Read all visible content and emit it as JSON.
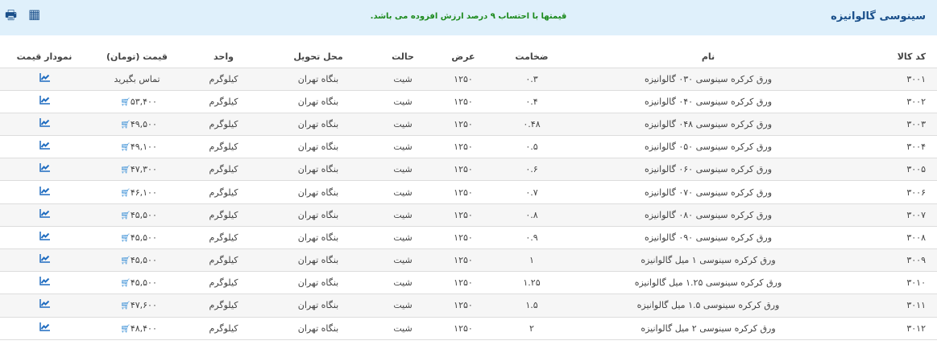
{
  "header": {
    "title": "سینوسی گالوانیزه",
    "notice": "قیمتها با احتساب ۹ درصد ارزش افزوده می باشد.",
    "icons": [
      "print-icon",
      "calculator-icon"
    ]
  },
  "columns": [
    "کد کالا",
    "نام",
    "ضخامت",
    "عرض",
    "حالت",
    "محل تحویل",
    "واحد",
    "قیمت (تومان)",
    "نمودار قیمت"
  ],
  "rows": [
    {
      "code": "۳۰۰۱",
      "name": "ورق کرکره سینوسی ۰۳۰ گالوانیزه",
      "thickness": "۰.۳",
      "width": "۱۲۵۰",
      "state": "شیت",
      "delivery": "بنگاه تهران",
      "unit": "کیلوگرم",
      "price": "تماس بگیرید",
      "cart": false
    },
    {
      "code": "۳۰۰۲",
      "name": "ورق کرکره سینوسی ۰۴۰ گالوانیزه",
      "thickness": "۰.۴",
      "width": "۱۲۵۰",
      "state": "شیت",
      "delivery": "بنگاه تهران",
      "unit": "کیلوگرم",
      "price": "۵۳,۴۰۰",
      "cart": true
    },
    {
      "code": "۳۰۰۳",
      "name": "ورق کرکره سینوسی ۰۴۸ گالوانیزه",
      "thickness": "۰.۴۸",
      "width": "۱۲۵۰",
      "state": "شیت",
      "delivery": "بنگاه تهران",
      "unit": "کیلوگرم",
      "price": "۴۹,۵۰۰",
      "cart": true
    },
    {
      "code": "۳۰۰۴",
      "name": "ورق کرکره سینوسی ۰۵۰ گالوانیزه",
      "thickness": "۰.۵",
      "width": "۱۲۵۰",
      "state": "شیت",
      "delivery": "بنگاه تهران",
      "unit": "کیلوگرم",
      "price": "۴۹,۱۰۰",
      "cart": true
    },
    {
      "code": "۳۰۰۵",
      "name": "ورق کرکره سینوسی ۰۶۰ گالوانیزه",
      "thickness": "۰.۶",
      "width": "۱۲۵۰",
      "state": "شیت",
      "delivery": "بنگاه تهران",
      "unit": "کیلوگرم",
      "price": "۴۷,۳۰۰",
      "cart": true
    },
    {
      "code": "۳۰۰۶",
      "name": "ورق کرکره سینوسی ۰۷۰ گالوانیزه",
      "thickness": "۰.۷",
      "width": "۱۲۵۰",
      "state": "شیت",
      "delivery": "بنگاه تهران",
      "unit": "کیلوگرم",
      "price": "۴۶,۱۰۰",
      "cart": true
    },
    {
      "code": "۳۰۰۷",
      "name": "ورق کرکره سینوسی ۰۸۰ گالوانیزه",
      "thickness": "۰.۸",
      "width": "۱۲۵۰",
      "state": "شیت",
      "delivery": "بنگاه تهران",
      "unit": "کیلوگرم",
      "price": "۴۵,۵۰۰",
      "cart": true
    },
    {
      "code": "۳۰۰۸",
      "name": "ورق کرکره سینوسی ۰۹۰ گالوانیزه",
      "thickness": "۰.۹",
      "width": "۱۲۵۰",
      "state": "شیت",
      "delivery": "بنگاه تهران",
      "unit": "کیلوگرم",
      "price": "۴۵,۵۰۰",
      "cart": true
    },
    {
      "code": "۳۰۰۹",
      "name": "ورق کرکره سینوسی ۱ میل گالوانیزه",
      "thickness": "۱",
      "width": "۱۲۵۰",
      "state": "شیت",
      "delivery": "بنگاه تهران",
      "unit": "کیلوگرم",
      "price": "۴۵,۵۰۰",
      "cart": true
    },
    {
      "code": "۳۰۱۰",
      "name": "ورق کرکره سینوسی ۱.۲۵ میل گالوانیزه",
      "thickness": "۱.۲۵",
      "width": "۱۲۵۰",
      "state": "شیت",
      "delivery": "بنگاه تهران",
      "unit": "کیلوگرم",
      "price": "۴۵,۵۰۰",
      "cart": true
    },
    {
      "code": "۳۰۱۱",
      "name": "ورق کرکره سینوسی ۱.۵ میل گالوانیزه",
      "thickness": "۱.۵",
      "width": "۱۲۵۰",
      "state": "شیت",
      "delivery": "بنگاه تهران",
      "unit": "کیلوگرم",
      "price": "۴۷,۶۰۰",
      "cart": true
    },
    {
      "code": "۳۰۱۲",
      "name": "ورق کرکره سینوسی ۲ میل گالوانیزه",
      "thickness": "۲",
      "width": "۱۲۵۰",
      "state": "شیت",
      "delivery": "بنگاه تهران",
      "unit": "کیلوگرم",
      "price": "۴۸,۴۰۰",
      "cart": true
    }
  ]
}
